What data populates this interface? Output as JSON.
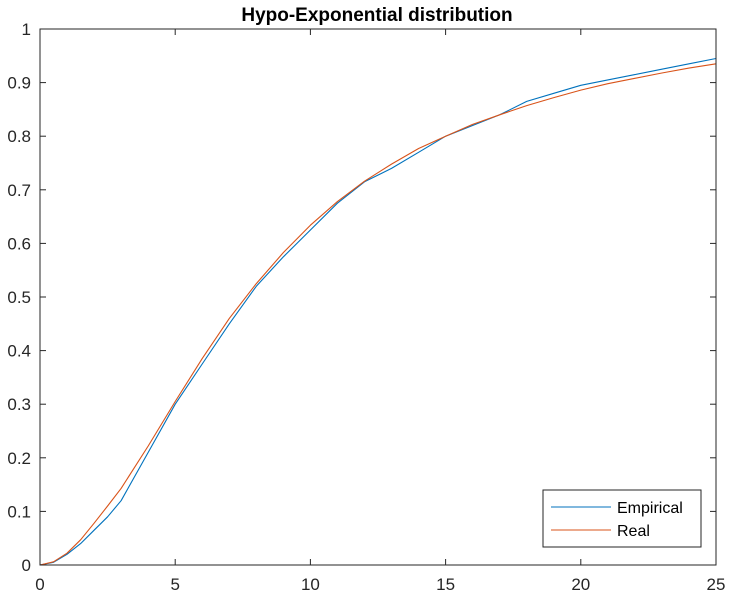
{
  "chart_data": {
    "type": "line",
    "title": "Hypo-Exponential distribution",
    "xlabel": "",
    "ylabel": "",
    "xlim": [
      0,
      25
    ],
    "ylim": [
      0,
      1
    ],
    "x_ticks": [
      0,
      5,
      10,
      15,
      20,
      25
    ],
    "x_tick_labels": [
      "0",
      "5",
      "10",
      "15",
      "20",
      "25"
    ],
    "y_ticks": [
      0,
      0.1,
      0.2,
      0.3,
      0.4,
      0.5,
      0.6,
      0.7,
      0.8,
      0.9,
      1
    ],
    "y_tick_labels": [
      "0",
      "0.1",
      "0.2",
      "0.3",
      "0.4",
      "0.5",
      "0.6",
      "0.7",
      "0.8",
      "0.9",
      "1"
    ],
    "grid": false,
    "legend_position": "bottom-right",
    "x": [
      0,
      0.5,
      1,
      1.5,
      2,
      2.5,
      3,
      4,
      5,
      6,
      7,
      8,
      9,
      10,
      11,
      12,
      13,
      14,
      15,
      16,
      17,
      18,
      19,
      20,
      21,
      22,
      23,
      24,
      25
    ],
    "series": [
      {
        "name": "Empirical",
        "color": "#0072BD",
        "values": [
          0,
          0.005,
          0.02,
          0.04,
          0.065,
          0.09,
          0.12,
          0.21,
          0.3,
          0.375,
          0.45,
          0.52,
          0.575,
          0.625,
          0.675,
          0.715,
          0.74,
          0.77,
          0.8,
          0.82,
          0.84,
          0.865,
          0.88,
          0.895,
          0.905,
          0.915,
          0.925,
          0.935,
          0.945
        ]
      },
      {
        "name": "Real",
        "color": "#D95319",
        "values": [
          0,
          0.006,
          0.022,
          0.047,
          0.078,
          0.11,
          0.143,
          0.222,
          0.305,
          0.385,
          0.46,
          0.525,
          0.583,
          0.634,
          0.678,
          0.716,
          0.748,
          0.777,
          0.8,
          0.822,
          0.84,
          0.857,
          0.872,
          0.886,
          0.898,
          0.908,
          0.918,
          0.927,
          0.935
        ]
      }
    ]
  }
}
